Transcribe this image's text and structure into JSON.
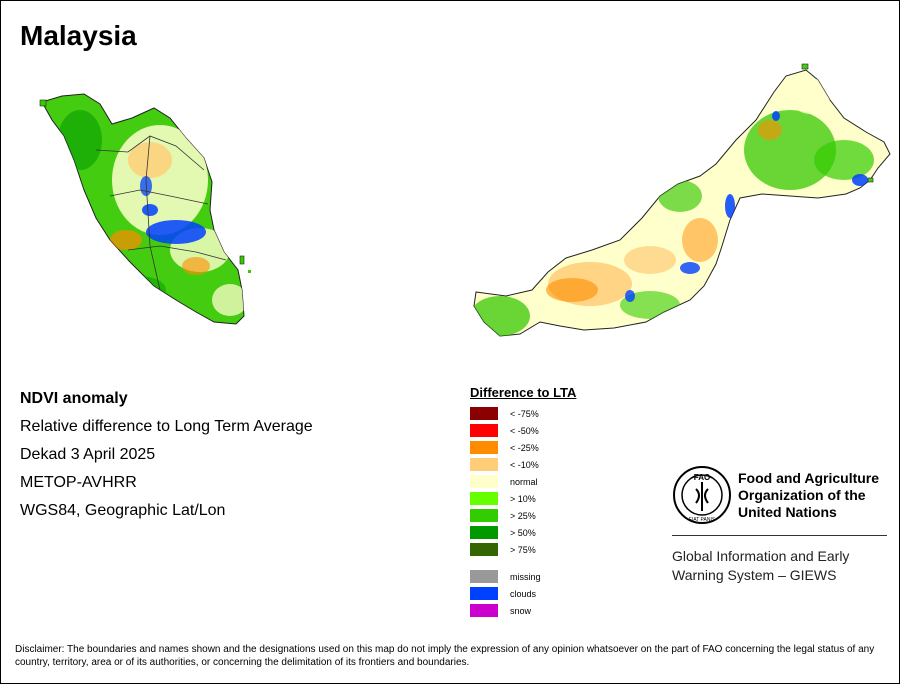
{
  "map_title": "Malaysia",
  "info": {
    "product": "NDVI anomaly",
    "description": "Relative difference to Long Term Average",
    "period": "Dekad 3 April 2025",
    "sensor": "METOP-AVHRR",
    "projection": "WGS84, Geographic Lat/Lon"
  },
  "legend": {
    "title": "Difference to LTA",
    "items": [
      {
        "label": "< -75%",
        "color": "#8b0000"
      },
      {
        "label": "< -50%",
        "color": "#ff0000"
      },
      {
        "label": "< -25%",
        "color": "#ff8c00"
      },
      {
        "label": "< -10%",
        "color": "#ffcc77"
      },
      {
        "label": "normal",
        "color": "#ffffcc"
      },
      {
        "label": "> 10%",
        "color": "#66ff00"
      },
      {
        "label": "> 25%",
        "color": "#33cc00"
      },
      {
        "label": "> 50%",
        "color": "#009900"
      },
      {
        "label": "> 75%",
        "color": "#336600"
      }
    ],
    "extra": [
      {
        "label": "missing",
        "color": "#999999"
      },
      {
        "label": "clouds",
        "color": "#0040ff"
      },
      {
        "label": "snow",
        "color": "#cc00cc"
      }
    ]
  },
  "org": {
    "logo_text": "FAO",
    "logo_motto": "FIAT PANIS",
    "name": "Food and Agriculture Organization of the United Nations",
    "program": "Global Information and Early Warning System – GIEWS"
  },
  "disclaimer": "Disclaimer: The boundaries and names shown and the designations used on this map do not imply the expression of any opinion whatsoever on the part of FAO concerning the legal status of any country, territory, area or of its authorities, or concerning the delimitation of its frontiers and boundaries."
}
